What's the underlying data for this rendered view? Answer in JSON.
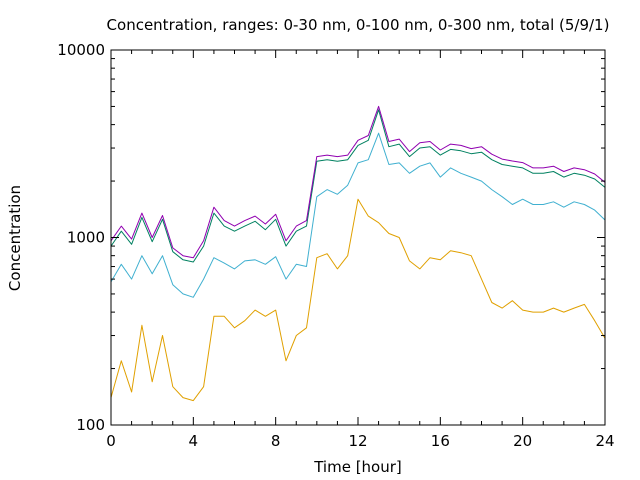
{
  "chart_data": {
    "type": "line",
    "title": "Concentration, ranges: 0-30 nm, 0-100 nm, 0-300 nm, total (5/9/1)",
    "xlabel": "Time [hour]",
    "ylabel": "Concentration",
    "xlim": [
      0,
      24
    ],
    "ylim": [
      100,
      10000
    ],
    "y_scale": "log",
    "grid": false,
    "x_ticks": [
      0,
      4,
      8,
      12,
      16,
      20,
      24
    ],
    "x_tick_labels": [
      "0",
      "4",
      "8",
      "12",
      "16",
      "20",
      "24"
    ],
    "y_ticks": [
      100,
      1000,
      10000
    ],
    "y_tick_labels": [
      "100",
      "1000",
      "10000"
    ],
    "x": [
      0,
      0.5,
      1,
      1.5,
      2,
      2.5,
      3,
      3.5,
      4,
      4.5,
      5,
      5.5,
      6,
      6.5,
      7,
      7.5,
      8,
      8.5,
      9,
      9.5,
      10,
      10.5,
      11,
      11.5,
      12,
      12.5,
      13,
      13.5,
      14,
      14.5,
      15,
      15.5,
      16,
      16.5,
      17,
      17.5,
      18,
      18.5,
      19,
      19.5,
      20,
      20.5,
      21,
      21.5,
      22,
      22.5,
      23,
      23.5,
      24
    ],
    "series": [
      {
        "color": "#e0a000",
        "values": [
          140,
          220,
          150,
          340,
          170,
          300,
          160,
          140,
          135,
          160,
          380,
          380,
          330,
          360,
          410,
          380,
          410,
          220,
          300,
          330,
          780,
          820,
          680,
          800,
          1600,
          1300,
          1200,
          1050,
          1000,
          750,
          680,
          780,
          760,
          850,
          830,
          800,
          600,
          450,
          420,
          460,
          410,
          400,
          400,
          420,
          400,
          420,
          440,
          360,
          290
        ]
      },
      {
        "color": "#40b0d0",
        "values": [
          580,
          720,
          600,
          800,
          640,
          800,
          560,
          500,
          480,
          600,
          780,
          730,
          680,
          750,
          760,
          720,
          790,
          600,
          720,
          700,
          1650,
          1800,
          1700,
          1900,
          2500,
          2600,
          3600,
          2450,
          2500,
          2200,
          2400,
          2500,
          2100,
          2350,
          2200,
          2100,
          2000,
          1800,
          1650,
          1500,
          1600,
          1500,
          1500,
          1550,
          1450,
          1550,
          1500,
          1400,
          1240
        ]
      },
      {
        "color": "#008060",
        "values": [
          900,
          1080,
          920,
          1280,
          950,
          1250,
          840,
          760,
          740,
          900,
          1350,
          1150,
          1080,
          1150,
          1220,
          1100,
          1250,
          900,
          1080,
          1150,
          2550,
          2600,
          2550,
          2600,
          3100,
          3300,
          4800,
          3050,
          3150,
          2700,
          3000,
          3050,
          2750,
          2950,
          2900,
          2800,
          2850,
          2600,
          2450,
          2400,
          2350,
          2200,
          2200,
          2250,
          2100,
          2200,
          2150,
          2050,
          1850
        ]
      },
      {
        "color": "#9000b0",
        "values": [
          960,
          1150,
          980,
          1350,
          1000,
          1310,
          880,
          800,
          780,
          960,
          1450,
          1230,
          1150,
          1230,
          1300,
          1180,
          1330,
          960,
          1150,
          1230,
          2700,
          2750,
          2700,
          2750,
          3300,
          3500,
          5000,
          3250,
          3350,
          2870,
          3200,
          3250,
          2930,
          3150,
          3100,
          2980,
          3050,
          2780,
          2620,
          2560,
          2510,
          2350,
          2350,
          2400,
          2250,
          2350,
          2300,
          2180,
          1970
        ]
      }
    ]
  }
}
